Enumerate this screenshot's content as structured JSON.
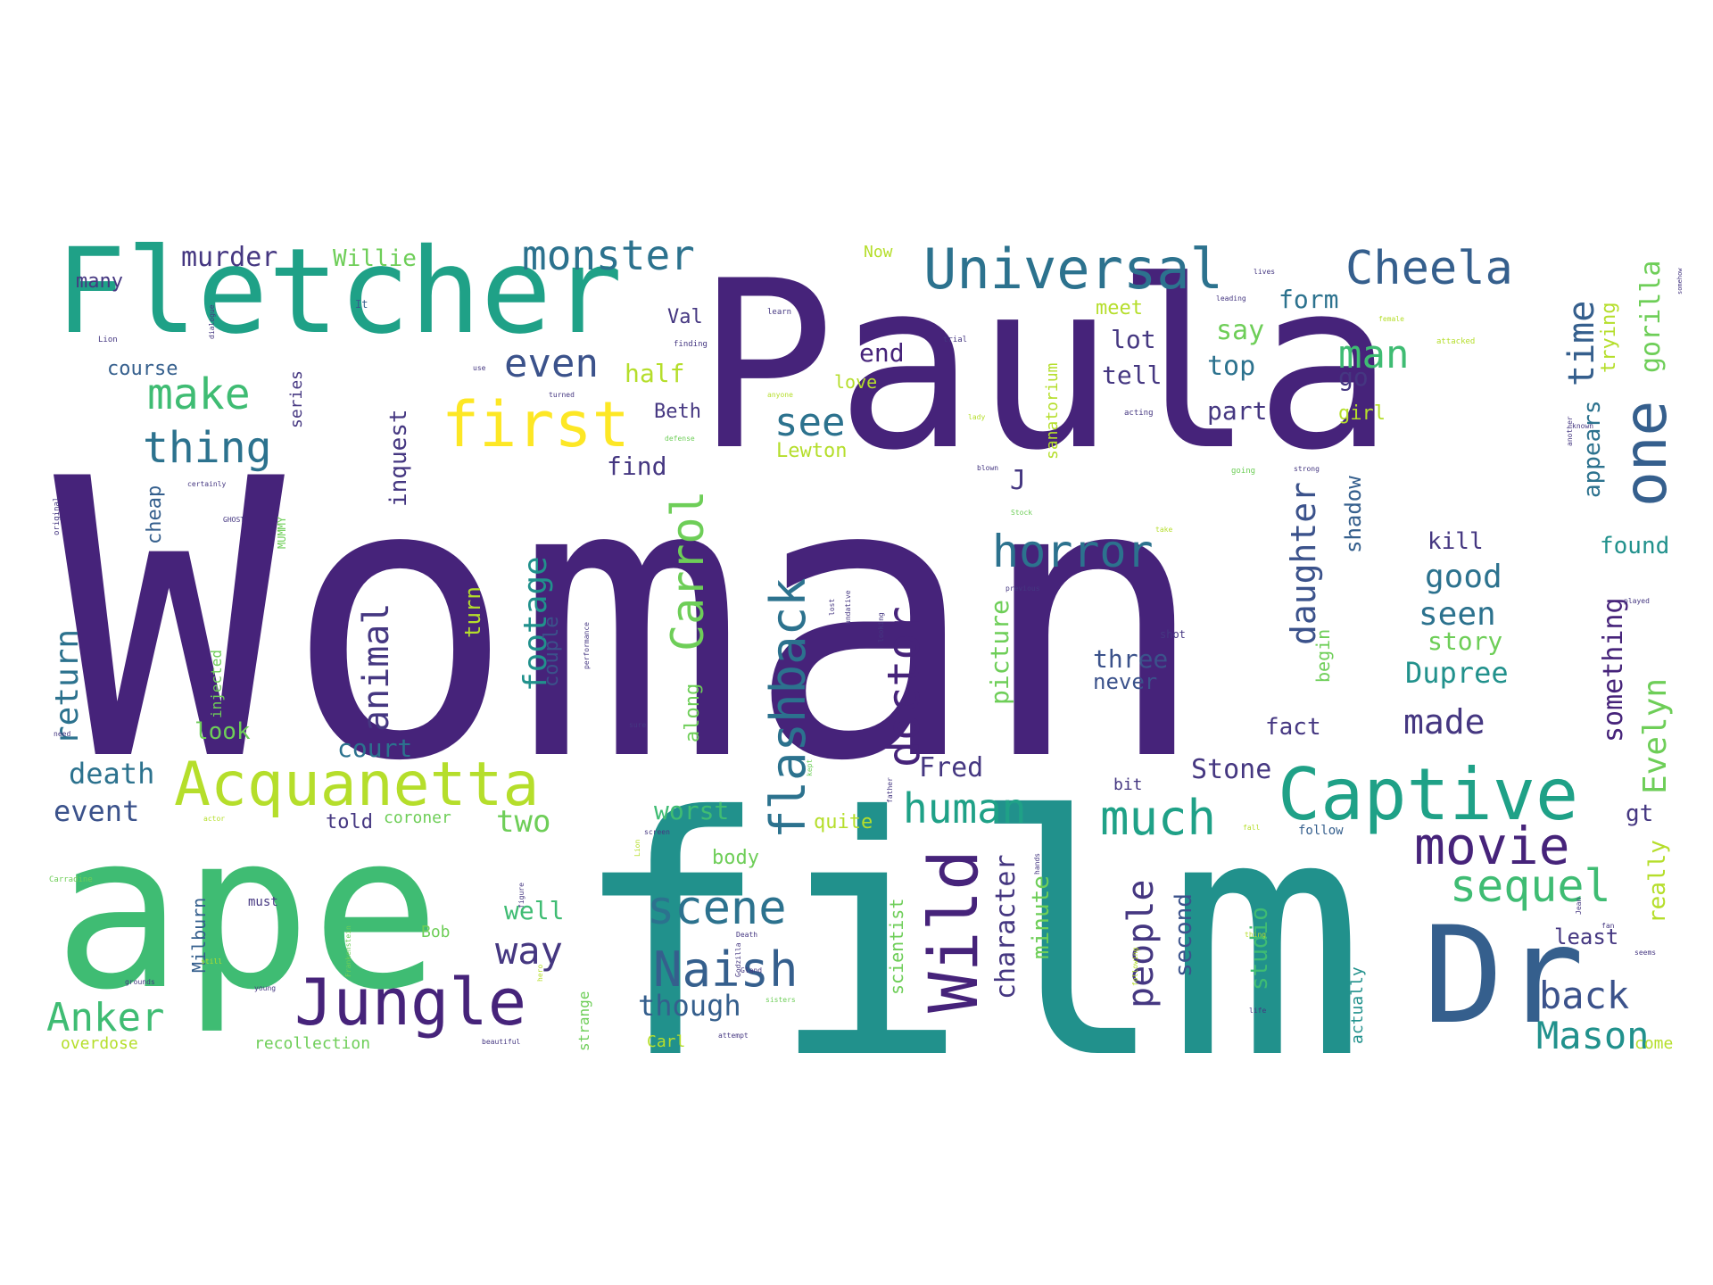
{
  "palette": {
    "background": "#ffffff",
    "dark_purple": "#46237a",
    "indigo": "#453781",
    "slate_blue": "#355f8d",
    "blue": "#3b528b",
    "teal_blue": "#2c728e",
    "teal": "#21918c",
    "sea_green": "#1fa187",
    "green": "#3fbc73",
    "light_green": "#6ece58",
    "lime": "#b5de2b",
    "yellow": "#fde725"
  },
  "words": [
    {
      "text": "Woman",
      "color": "#46237a",
      "weight": 1.0
    },
    {
      "text": "Paula",
      "color": "#46237a",
      "weight": 0.6
    },
    {
      "text": "film",
      "color": "#21918c",
      "weight": 0.62
    },
    {
      "text": "ape",
      "color": "#3fbc73",
      "weight": 0.42
    },
    {
      "text": "Fletcher",
      "color": "#1fa187",
      "weight": 0.3
    },
    {
      "text": "Dr",
      "color": "#355f8d",
      "weight": 0.28
    },
    {
      "text": "Captive",
      "color": "#1fa187",
      "weight": 0.15
    },
    {
      "text": "Jungle",
      "color": "#46237a",
      "weight": 0.14
    },
    {
      "text": "Acquanetta",
      "color": "#b5de2b",
      "weight": 0.14
    },
    {
      "text": "Universal",
      "color": "#2c728e",
      "weight": 0.12
    },
    {
      "text": "first",
      "color": "#fde725",
      "weight": 0.14
    },
    {
      "text": "Wild",
      "color": "#46237a",
      "weight": 0.15
    },
    {
      "text": "one",
      "color": "#355f8d",
      "weight": 0.13
    },
    {
      "text": "Cheela",
      "color": "#355f8d",
      "weight": 0.11
    },
    {
      "text": "movie",
      "color": "#46237a",
      "weight": 0.11
    },
    {
      "text": "monster",
      "color": "#2c728e",
      "weight": 0.09
    },
    {
      "text": "flashback",
      "color": "#2c728e",
      "weight": 0.1
    },
    {
      "text": "Carrol",
      "color": "#6ece58",
      "weight": 0.1
    },
    {
      "text": "horror",
      "color": "#2c728e",
      "weight": 0.1
    },
    {
      "text": "doctor",
      "color": "#46237a",
      "weight": 0.1
    },
    {
      "text": "Naish",
      "color": "#355f8d",
      "weight": 0.1
    },
    {
      "text": "scene",
      "color": "#2c728e",
      "weight": 0.1
    },
    {
      "text": "much",
      "color": "#1fa187",
      "weight": 0.1
    },
    {
      "text": "human",
      "color": "#1fa187",
      "weight": 0.09
    },
    {
      "text": "sequel",
      "color": "#3fbc73",
      "weight": 0.09
    },
    {
      "text": "Anker",
      "color": "#3fbc73",
      "weight": 0.09
    },
    {
      "text": "thing",
      "color": "#2c728e",
      "weight": 0.09
    },
    {
      "text": "make",
      "color": "#3fbc73",
      "weight": 0.09
    },
    {
      "text": "see",
      "color": "#2c728e",
      "weight": 0.09
    },
    {
      "text": "even",
      "color": "#3b528b",
      "weight": 0.08
    },
    {
      "text": "time",
      "color": "#355f8d",
      "weight": 0.08
    },
    {
      "text": "back",
      "color": "#3b528b",
      "weight": 0.09
    },
    {
      "text": "Mason",
      "color": "#21918c",
      "weight": 0.08
    },
    {
      "text": "Evelyn",
      "color": "#6ece58",
      "weight": 0.08
    },
    {
      "text": "daughter",
      "color": "#3b528b",
      "weight": 0.08
    },
    {
      "text": "animal",
      "color": "#453781",
      "weight": 0.08
    },
    {
      "text": "people",
      "color": "#453781",
      "weight": 0.08
    },
    {
      "text": "way",
      "color": "#453781",
      "weight": 0.08
    },
    {
      "text": "footage",
      "color": "#21918c",
      "weight": 0.07
    },
    {
      "text": "man",
      "color": "#3fbc73",
      "weight": 0.07
    },
    {
      "text": "made",
      "color": "#453781",
      "weight": 0.07
    },
    {
      "text": "seen",
      "color": "#2c728e",
      "weight": 0.07
    },
    {
      "text": "good",
      "color": "#2c728e",
      "weight": 0.07
    },
    {
      "text": "Dupree",
      "color": "#21918c",
      "weight": 0.06
    },
    {
      "text": "return",
      "color": "#2c728e",
      "weight": 0.06
    },
    {
      "text": "gorilla",
      "color": "#6ece58",
      "weight": 0.06
    },
    {
      "text": "death",
      "color": "#2c728e",
      "weight": 0.06
    },
    {
      "text": "event",
      "color": "#3b528b",
      "weight": 0.06
    },
    {
      "text": "two",
      "color": "#6ece58",
      "weight": 0.06
    },
    {
      "text": "character",
      "color": "#453781",
      "weight": 0.06
    },
    {
      "text": "second",
      "color": "#3b528b",
      "weight": 0.06
    },
    {
      "text": "studio",
      "color": "#3fbc73",
      "weight": 0.05
    },
    {
      "text": "though",
      "color": "#355f8d",
      "weight": 0.06
    },
    {
      "text": "something",
      "color": "#46237a",
      "weight": 0.06
    },
    {
      "text": "really",
      "color": "#b5de2b",
      "weight": 0.05
    },
    {
      "text": "Stone",
      "color": "#453781",
      "weight": 0.06
    },
    {
      "text": "Fred",
      "color": "#453781",
      "weight": 0.06
    },
    {
      "text": "murder",
      "color": "#453781",
      "weight": 0.06
    },
    {
      "text": "Willie",
      "color": "#6ece58",
      "weight": 0.05
    },
    {
      "text": "end",
      "color": "#46237a",
      "weight": 0.05
    },
    {
      "text": "half",
      "color": "#b5de2b",
      "weight": 0.05
    },
    {
      "text": "inquest",
      "color": "#453781",
      "weight": 0.05
    },
    {
      "text": "court",
      "color": "#2c728e",
      "weight": 0.05
    },
    {
      "text": "worst",
      "color": "#3fbc73",
      "weight": 0.05
    },
    {
      "text": "well",
      "color": "#3fbc73",
      "weight": 0.05
    },
    {
      "text": "three",
      "color": "#3b528b",
      "weight": 0.05
    },
    {
      "text": "never",
      "color": "#3b528b",
      "weight": 0.05
    },
    {
      "text": "picture",
      "color": "#6ece58",
      "weight": 0.05
    },
    {
      "text": "minute",
      "color": "#6ece58",
      "weight": 0.05
    },
    {
      "text": "scientist",
      "color": "#6ece58",
      "weight": 0.04
    },
    {
      "text": "shadow",
      "color": "#355f8d",
      "weight": 0.04
    },
    {
      "text": "found",
      "color": "#21918c",
      "weight": 0.05
    },
    {
      "text": "appears",
      "color": "#2c728e",
      "weight": 0.05
    },
    {
      "text": "trying",
      "color": "#b5de2b",
      "weight": 0.04
    },
    {
      "text": "form",
      "color": "#2c728e",
      "weight": 0.05
    },
    {
      "text": "say",
      "color": "#6ece58",
      "weight": 0.05
    },
    {
      "text": "top",
      "color": "#2c728e",
      "weight": 0.05
    },
    {
      "text": "meet",
      "color": "#b5de2b",
      "weight": 0.04
    },
    {
      "text": "lot",
      "color": "#453781",
      "weight": 0.05
    },
    {
      "text": "tell",
      "color": "#453781",
      "weight": 0.05
    },
    {
      "text": "go",
      "color": "#453781",
      "weight": 0.05
    },
    {
      "text": "part",
      "color": "#453781",
      "weight": 0.05
    },
    {
      "text": "girl",
      "color": "#b5de2b",
      "weight": 0.04
    },
    {
      "text": "kill",
      "color": "#453781",
      "weight": 0.04
    },
    {
      "text": "story",
      "color": "#6ece58",
      "weight": 0.05
    },
    {
      "text": "fact",
      "color": "#453781",
      "weight": 0.05
    },
    {
      "text": "begin",
      "color": "#6ece58",
      "weight": 0.03
    },
    {
      "text": "along",
      "color": "#6ece58",
      "weight": 0.04
    },
    {
      "text": "find",
      "color": "#453781",
      "weight": 0.04
    },
    {
      "text": "Beth",
      "color": "#453781",
      "weight": 0.04
    },
    {
      "text": "love",
      "color": "#b5de2b",
      "weight": 0.03
    },
    {
      "text": "Lewton",
      "color": "#b5de2b",
      "weight": 0.04
    },
    {
      "text": "sanatorium",
      "color": "#b5de2b",
      "weight": 0.03
    },
    {
      "text": "Val",
      "color": "#453781",
      "weight": 0.04
    },
    {
      "text": "look",
      "color": "#6ece58",
      "weight": 0.04
    },
    {
      "text": "turn",
      "color": "#b5de2b",
      "weight": 0.04
    },
    {
      "text": "couple",
      "color": "#3b528b",
      "weight": 0.04
    },
    {
      "text": "cheap",
      "color": "#355f8d",
      "weight": 0.04
    },
    {
      "text": "told",
      "color": "#453781",
      "weight": 0.04
    },
    {
      "text": "coroner",
      "color": "#6ece58",
      "weight": 0.03
    },
    {
      "text": "body",
      "color": "#6ece58",
      "weight": 0.04
    },
    {
      "text": "quite",
      "color": "#b5de2b",
      "weight": 0.04
    },
    {
      "text": "Milburn",
      "color": "#355f8d",
      "weight": 0.03
    },
    {
      "text": "course",
      "color": "#355f8d",
      "weight": 0.04
    },
    {
      "text": "series",
      "color": "#453781",
      "weight": 0.03
    },
    {
      "text": "many",
      "color": "#453781",
      "weight": 0.04
    },
    {
      "text": "recollection",
      "color": "#6ece58",
      "weight": 0.03
    },
    {
      "text": "overdose",
      "color": "#b5de2b",
      "weight": 0.03
    },
    {
      "text": "Carl",
      "color": "#b5de2b",
      "weight": 0.03
    },
    {
      "text": "strange",
      "color": "#6ece58",
      "weight": 0.03
    },
    {
      "text": "least",
      "color": "#453781",
      "weight": 0.04
    },
    {
      "text": "actually",
      "color": "#21918c",
      "weight": 0.03
    },
    {
      "text": "come",
      "color": "#b5de2b",
      "weight": 0.03
    },
    {
      "text": "follow",
      "color": "#355f8d",
      "weight": 0.02
    },
    {
      "text": "gt",
      "color": "#453781",
      "weight": 0.04
    },
    {
      "text": "J",
      "color": "#453781",
      "weight": 0.05
    },
    {
      "text": "bit",
      "color": "#453781",
      "weight": 0.03
    },
    {
      "text": "Bob",
      "color": "#6ece58",
      "weight": 0.03
    },
    {
      "text": "must",
      "color": "#453781",
      "weight": 0.02
    },
    {
      "text": "injected",
      "color": "#6ece58",
      "weight": 0.03
    },
    {
      "text": "MUMMY",
      "color": "#6ece58",
      "weight": 0.02
    },
    {
      "text": "Now",
      "color": "#b5de2b",
      "weight": 0.03
    },
    {
      "text": "It",
      "color": "#355f8d",
      "weight": 0.02
    },
    {
      "text": "Carradine",
      "color": "#6ece58",
      "weight": 0.01
    },
    {
      "text": "need",
      "color": "#453781",
      "weight": 0.01
    },
    {
      "text": "original",
      "color": "#453781",
      "weight": 0.01
    },
    {
      "text": "certainly",
      "color": "#453781",
      "weight": 0.01
    },
    {
      "text": "GHOST",
      "color": "#453781",
      "weight": 0.01
    },
    {
      "text": "dialogue",
      "color": "#453781",
      "weight": 0.01
    },
    {
      "text": "Lion",
      "color": "#453781",
      "weight": 0.01
    },
    {
      "text": "learn",
      "color": "#453781",
      "weight": 0.01
    },
    {
      "text": "finding",
      "color": "#453781",
      "weight": 0.01
    },
    {
      "text": "use",
      "color": "#453781",
      "weight": 0.01
    },
    {
      "text": "turned",
      "color": "#453781",
      "weight": 0.01
    },
    {
      "text": "anyone",
      "color": "#b5de2b",
      "weight": 0.01
    },
    {
      "text": "defense",
      "color": "#6ece58",
      "weight": 0.01
    },
    {
      "text": "trial",
      "color": "#453781",
      "weight": 0.01
    },
    {
      "text": "lady",
      "color": "#b5de2b",
      "weight": 0.01
    },
    {
      "text": "blown",
      "color": "#453781",
      "weight": 0.01
    },
    {
      "text": "Stock",
      "color": "#6ece58",
      "weight": 0.01
    },
    {
      "text": "acting",
      "color": "#453781",
      "weight": 0.01
    },
    {
      "text": "lives",
      "color": "#453781",
      "weight": 0.01
    },
    {
      "text": "leading",
      "color": "#453781",
      "weight": 0.01
    },
    {
      "text": "female",
      "color": "#b5de2b",
      "weight": 0.01
    },
    {
      "text": "attacked",
      "color": "#b5de2b",
      "weight": 0.01
    },
    {
      "text": "going",
      "color": "#6ece58",
      "weight": 0.01
    },
    {
      "text": "strong",
      "color": "#453781",
      "weight": 0.01
    },
    {
      "text": "take",
      "color": "#b5de2b",
      "weight": 0.01
    },
    {
      "text": "another",
      "color": "#453781",
      "weight": 0.01
    },
    {
      "text": "known",
      "color": "#453781",
      "weight": 0.01
    },
    {
      "text": "somehow",
      "color": "#453781",
      "weight": 0.01
    },
    {
      "text": "played",
      "color": "#453781",
      "weight": 0.01
    },
    {
      "text": "previous",
      "color": "#453781",
      "weight": 0.01
    },
    {
      "text": "shot",
      "color": "#453781",
      "weight": 0.02
    },
    {
      "text": "looking",
      "color": "#453781",
      "weight": 0.01
    },
    {
      "text": "lost",
      "color": "#453781",
      "weight": 0.01
    },
    {
      "text": "undative",
      "color": "#453781",
      "weight": 0.01
    },
    {
      "text": "performance",
      "color": "#453781",
      "weight": 0.01
    },
    {
      "text": "father",
      "color": "#453781",
      "weight": 0.01
    },
    {
      "text": "Lion",
      "color": "#b5de2b",
      "weight": 0.01
    },
    {
      "text": "seems",
      "color": "#453781",
      "weight": 0.01
    },
    {
      "text": "fall",
      "color": "#b5de2b",
      "weight": 0.01
    },
    {
      "text": "fan",
      "color": "#453781",
      "weight": 0.01
    },
    {
      "text": "following",
      "color": "#b5de2b",
      "weight": 0.01
    },
    {
      "text": "hands",
      "color": "#453781",
      "weight": 0.01
    },
    {
      "text": "figure",
      "color": "#453781",
      "weight": 0.01
    },
    {
      "text": "Godzilla",
      "color": "#453781",
      "weight": 0.01
    },
    {
      "text": "screen",
      "color": "#453781",
      "weight": 0.01
    },
    {
      "text": "Frankenstein",
      "color": "#6ece58",
      "weight": 0.01
    },
    {
      "text": "young",
      "color": "#453781",
      "weight": 0.01
    },
    {
      "text": "grounds",
      "color": "#453781",
      "weight": 0.01
    },
    {
      "text": "still",
      "color": "#b5de2b",
      "weight": 0.01
    },
    {
      "text": "beautiful",
      "color": "#453781",
      "weight": 0.01
    },
    {
      "text": "attempt",
      "color": "#453781",
      "weight": 0.01
    },
    {
      "text": "sisters",
      "color": "#6ece58",
      "weight": 0.01
    },
    {
      "text": "life",
      "color": "#453781",
      "weight": 0.01
    },
    {
      "text": "hero",
      "color": "#b5de2b",
      "weight": 0.01
    },
    {
      "text": "Jean",
      "color": "#453781",
      "weight": 0.01
    },
    {
      "text": "thing",
      "color": "#b5de2b",
      "weight": 0.01
    },
    {
      "text": "actor",
      "color": "#b5de2b",
      "weight": 0.01
    },
    {
      "text": "kept",
      "color": "#6ece58",
      "weight": 0.01
    },
    {
      "text": "Death",
      "color": "#453781",
      "weight": 0.01
    },
    {
      "text": "Gland",
      "color": "#453781",
      "weight": 0.01
    },
    {
      "text": "sure",
      "color": "#453781",
      "weight": 0.01
    }
  ]
}
